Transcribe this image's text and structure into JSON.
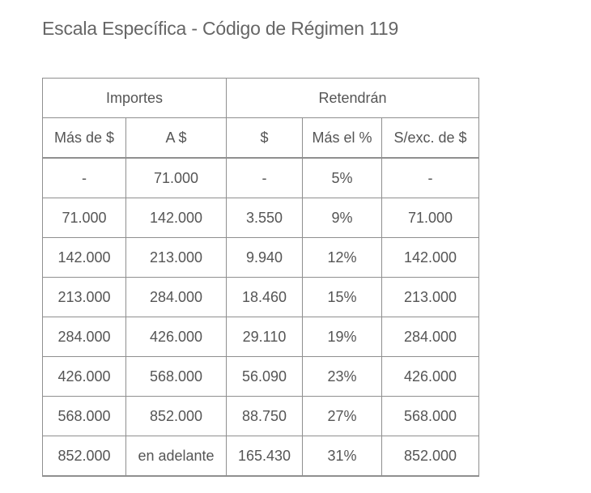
{
  "title": "Escala Específica - Código de Régimen 119",
  "table": {
    "group_headers": [
      "Importes",
      "Retendrán"
    ],
    "columns": [
      "Más de $",
      "A $",
      "$",
      "Más el %",
      "S/exc. de $"
    ],
    "rows": [
      [
        "-",
        "71.000",
        "-",
        "5%",
        "-"
      ],
      [
        "71.000",
        "142.000",
        "3.550",
        "9%",
        "71.000"
      ],
      [
        "142.000",
        "213.000",
        "9.940",
        "12%",
        "142.000"
      ],
      [
        "213.000",
        "284.000",
        "18.460",
        "15%",
        "213.000"
      ],
      [
        "284.000",
        "426.000",
        "29.110",
        "19%",
        "284.000"
      ],
      [
        "426.000",
        "568.000",
        "56.090",
        "23%",
        "426.000"
      ],
      [
        "568.000",
        "852.000",
        "88.750",
        "27%",
        "568.000"
      ],
      [
        "852.000",
        "en adelante",
        "165.430",
        "31%",
        "852.000"
      ]
    ]
  }
}
